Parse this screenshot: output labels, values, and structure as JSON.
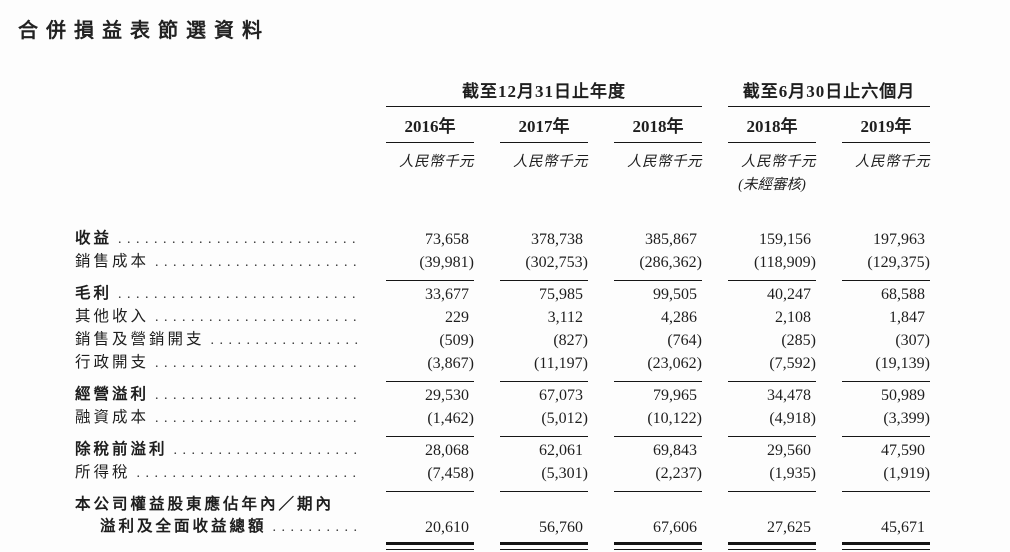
{
  "page_title": "合併損益表節選資料",
  "colors": {
    "text": "#1e1e1e",
    "rule": "#161616",
    "background": "#fdfdfd"
  },
  "table": {
    "column_groups": [
      {
        "label": "截至12月31日止年度",
        "span": 3
      },
      {
        "label": "截至6月30日止六個月",
        "span": 2
      }
    ],
    "year_headers": [
      "2016年",
      "2017年",
      "2018年",
      "2018年",
      "2019年"
    ],
    "unit_label": "人民幣千元",
    "unaudited_note": "(未經審核)",
    "unaudited_note_column": 4,
    "rows": [
      {
        "label": "收益",
        "bold": true,
        "values": [
          "73,658",
          "378,738",
          "385,867",
          "159,156",
          "197,963"
        ]
      },
      {
        "label": "銷售成本",
        "bold": false,
        "values": [
          "(39,981)",
          "(302,753)",
          "(286,362)",
          "(118,909)",
          "(129,375)"
        ],
        "rule_below": true
      },
      {
        "label": "毛利",
        "bold": true,
        "values": [
          "33,677",
          "75,985",
          "99,505",
          "40,247",
          "68,588"
        ]
      },
      {
        "label": "其他收入",
        "bold": false,
        "values": [
          "229",
          "3,112",
          "4,286",
          "2,108",
          "1,847"
        ]
      },
      {
        "label": "銷售及營銷開支",
        "bold": false,
        "values": [
          "(509)",
          "(827)",
          "(764)",
          "(285)",
          "(307)"
        ]
      },
      {
        "label": "行政開支",
        "bold": false,
        "values": [
          "(3,867)",
          "(11,197)",
          "(23,062)",
          "(7,592)",
          "(19,139)"
        ],
        "rule_below": true
      },
      {
        "label": "經營溢利",
        "bold": true,
        "values": [
          "29,530",
          "67,073",
          "79,965",
          "34,478",
          "50,989"
        ]
      },
      {
        "label": "融資成本",
        "bold": false,
        "values": [
          "(1,462)",
          "(5,012)",
          "(10,122)",
          "(4,918)",
          "(3,399)"
        ],
        "rule_below": true
      },
      {
        "label": "除稅前溢利",
        "bold": true,
        "values": [
          "28,068",
          "62,061",
          "69,843",
          "29,560",
          "47,590"
        ]
      },
      {
        "label": "所得稅",
        "bold": false,
        "values": [
          "(7,458)",
          "(5,301)",
          "(2,237)",
          "(1,935)",
          "(1,919)"
        ],
        "rule_below": true
      },
      {
        "label_lines": [
          "本公司權益股東應佔年內／期內",
          "溢利及全面收益總額"
        ],
        "bold": true,
        "values": [
          "20,610",
          "56,760",
          "67,606",
          "27,625",
          "45,671"
        ],
        "double_rule_below": true
      }
    ]
  }
}
